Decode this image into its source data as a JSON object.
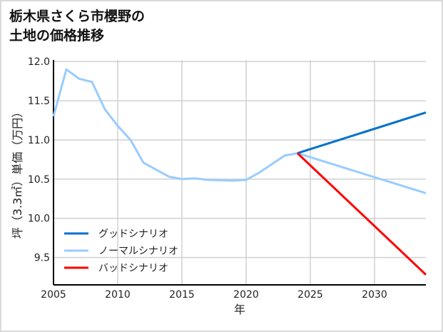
{
  "title_lines": [
    "栃木県さくら市櫻野の",
    "土地の価格推移"
  ],
  "chart_data": {
    "type": "line",
    "title": "栃木県さくら市櫻野の土地の価格推移",
    "xlabel": "年",
    "ylabel": "坪（3.3㎡）単価（万円）",
    "xlim": [
      2005,
      2034
    ],
    "ylim": [
      9.15,
      12.02
    ],
    "xticks": [
      2005,
      2010,
      2015,
      2020,
      2025,
      2030
    ],
    "yticks": [
      9.5,
      10.0,
      10.5,
      11.0,
      11.5,
      12.0
    ],
    "grid": true,
    "legend_position": "bottom-left",
    "series": [
      {
        "name": "グッドシナリオ",
        "color": "#0072cc",
        "x": [
          2024,
          2034
        ],
        "y": [
          10.83,
          11.35
        ]
      },
      {
        "name": "ノーマルシナリオ",
        "color": "#99ccff",
        "x": [
          2005,
          2006,
          2007,
          2008,
          2009,
          2010,
          2011,
          2012,
          2013,
          2014,
          2015,
          2016,
          2017,
          2018,
          2019,
          2020,
          2021,
          2022,
          2023,
          2024,
          2034
        ],
        "y": [
          11.3,
          11.9,
          11.78,
          11.74,
          11.39,
          11.18,
          11.0,
          10.71,
          10.62,
          10.53,
          10.5,
          10.51,
          10.49,
          10.485,
          10.48,
          10.49,
          10.58,
          10.69,
          10.8,
          10.83,
          10.32
        ]
      },
      {
        "name": "バッドシナリオ",
        "color": "#ff0000",
        "x": [
          2024,
          2034
        ],
        "y": [
          10.83,
          9.28
        ]
      }
    ]
  }
}
